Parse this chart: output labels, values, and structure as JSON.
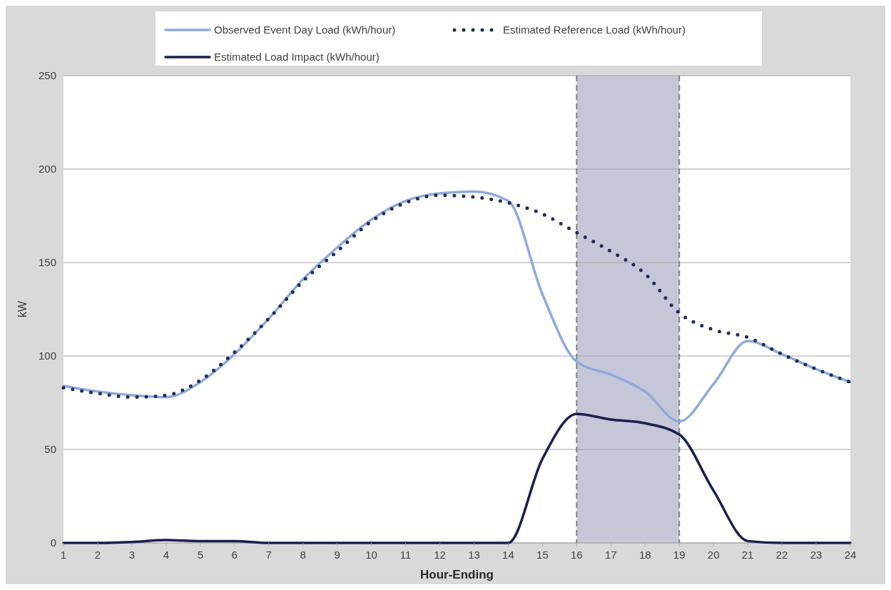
{
  "chart_data": {
    "type": "line",
    "xlabel": "Hour-Ending",
    "ylabel": "kW",
    "x": [
      1,
      2,
      3,
      4,
      5,
      6,
      7,
      8,
      9,
      10,
      11,
      12,
      13,
      14,
      15,
      16,
      17,
      18,
      19,
      20,
      21,
      22,
      23,
      24
    ],
    "xlim": [
      1,
      24
    ],
    "xticks": [
      1,
      2,
      3,
      4,
      5,
      6,
      7,
      8,
      9,
      10,
      11,
      12,
      13,
      14,
      15,
      16,
      17,
      18,
      19,
      20,
      21,
      22,
      23,
      24
    ],
    "ylim": [
      0,
      250
    ],
    "yticks": [
      0,
      50,
      100,
      150,
      200,
      250
    ],
    "grid": "y",
    "legend": "top",
    "series": [
      {
        "name": "Observed Event Day Load (kWh/hour)",
        "color": "#8faadc",
        "line_style": "solid",
        "values": [
          84,
          81,
          79,
          78,
          86,
          101,
          120,
          141,
          158,
          173,
          183,
          187,
          188,
          183,
          133,
          97,
          90,
          81,
          65,
          85,
          108,
          101,
          93,
          86
        ]
      },
      {
        "name": "Estimated Reference Load (kWh/hour)",
        "color": "#1f2d58",
        "line_style": "dotted",
        "values": [
          83,
          80,
          78,
          79,
          87,
          102,
          120,
          140,
          156,
          172,
          182,
          186,
          185,
          182,
          176,
          166,
          156,
          144,
          123,
          114,
          110,
          101,
          93,
          86
        ]
      },
      {
        "name": "Estimated Load Impact (kWh/hour)",
        "color": "#1b1f4e",
        "line_style": "solid",
        "values": [
          0,
          0,
          0.5,
          1.5,
          1,
          1,
          0,
          0,
          0,
          0,
          0,
          0,
          0,
          0,
          45,
          69,
          66,
          64,
          58,
          28,
          1,
          0,
          0,
          0
        ]
      }
    ],
    "bands": [
      {
        "axis": "x",
        "from": 16,
        "to": 19,
        "color": "#c5c6d8"
      }
    ],
    "ref_lines": [
      {
        "axis": "x",
        "value": 16,
        "color": "#7f7f7f",
        "line_style": "dashed"
      },
      {
        "axis": "x",
        "value": 19,
        "color": "#7f7f7f",
        "line_style": "dashed"
      }
    ]
  }
}
